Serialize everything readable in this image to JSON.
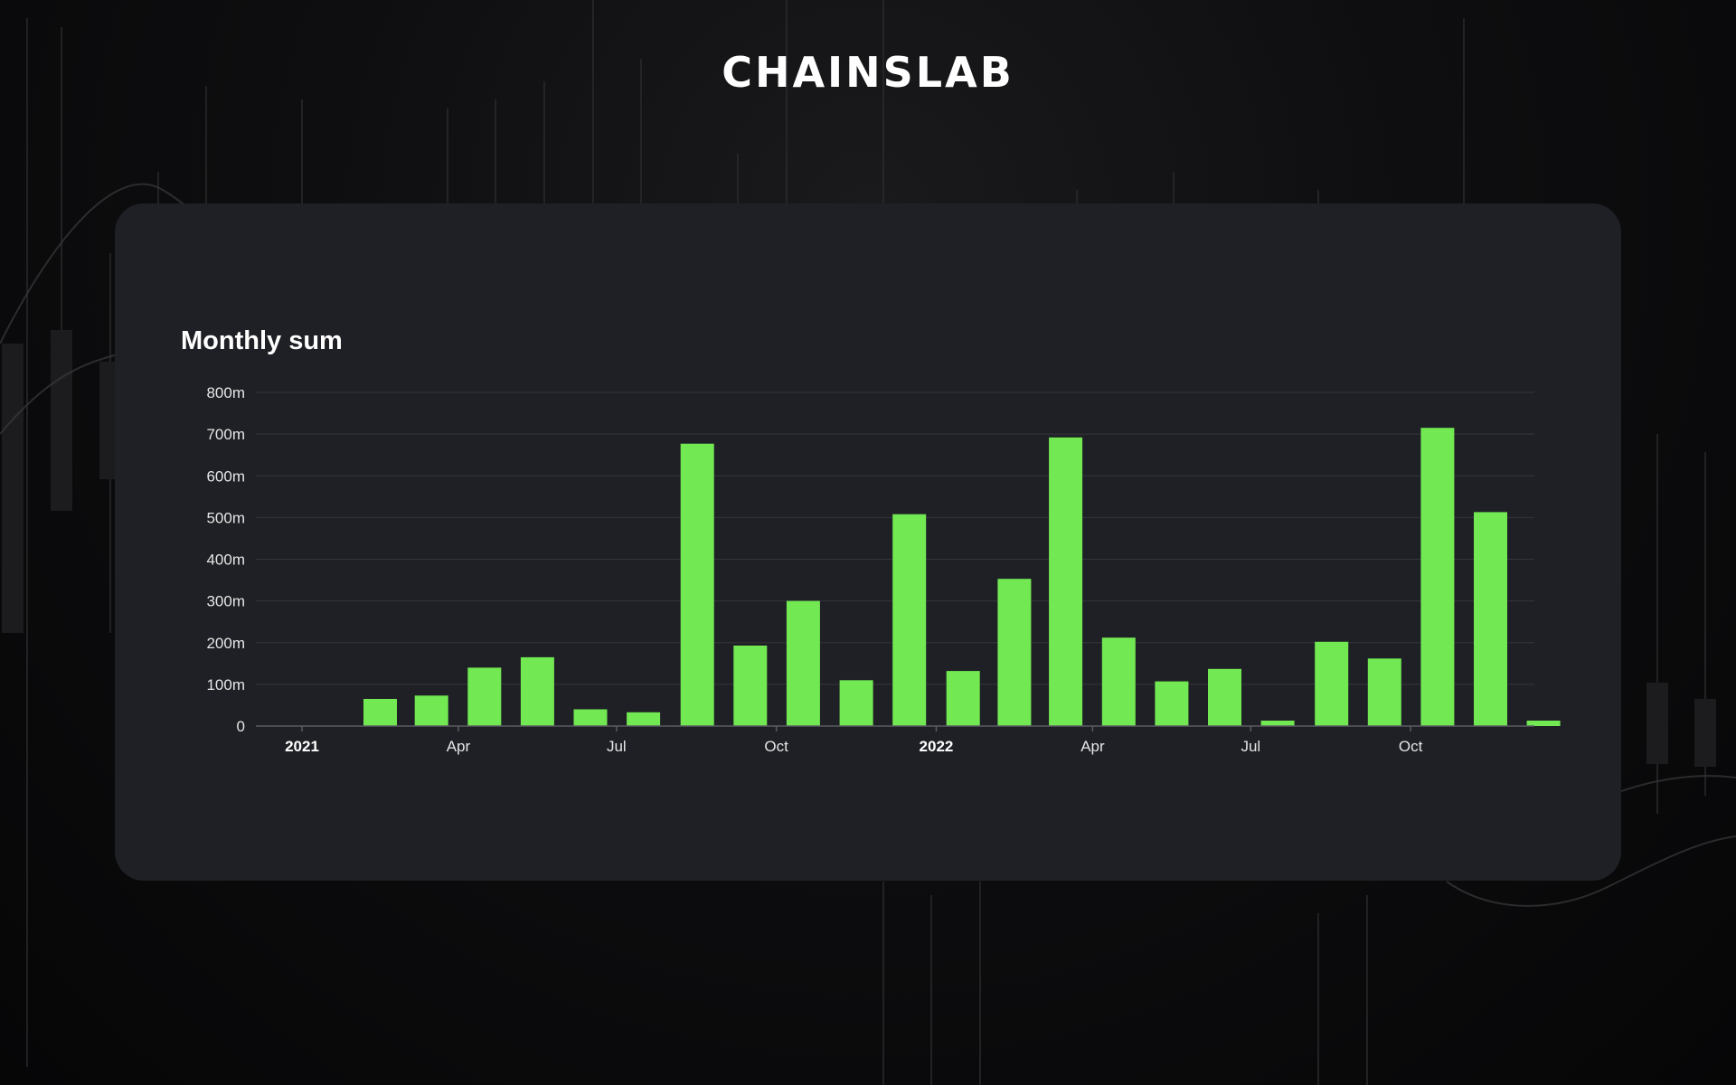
{
  "brand": {
    "logo_text": "CHAINSLAB"
  },
  "colors": {
    "bar": "#72e852",
    "card": "#1f2025",
    "background": "#0b0b0c"
  },
  "chart_data": {
    "type": "bar",
    "title": "Monthly sum",
    "xlabel": "",
    "ylabel": "",
    "ylim": [
      0,
      800000000
    ],
    "yticks": [
      {
        "value": 0,
        "label": "0"
      },
      {
        "value": 100000000,
        "label": "100m"
      },
      {
        "value": 200000000,
        "label": "200m"
      },
      {
        "value": 300000000,
        "label": "300m"
      },
      {
        "value": 400000000,
        "label": "400m"
      },
      {
        "value": 500000000,
        "label": "500m"
      },
      {
        "value": 600000000,
        "label": "600m"
      },
      {
        "value": 700000000,
        "label": "700m"
      },
      {
        "value": 800000000,
        "label": "800m"
      }
    ],
    "grid": true,
    "legend": "none",
    "x_axis": {
      "type": "date",
      "range": [
        "2021-01-01",
        "2022-12-31"
      ],
      "ticks": [
        {
          "date": "2021-01-01",
          "label": "2021",
          "bold": true
        },
        {
          "date": "2021-04-01",
          "label": "Apr",
          "bold": false
        },
        {
          "date": "2021-07-01",
          "label": "Jul",
          "bold": false
        },
        {
          "date": "2021-10-01",
          "label": "Oct",
          "bold": false
        },
        {
          "date": "2022-01-01",
          "label": "2022",
          "bold": true
        },
        {
          "date": "2022-04-01",
          "label": "Apr",
          "bold": false
        },
        {
          "date": "2022-07-01",
          "label": "Jul",
          "bold": false
        },
        {
          "date": "2022-10-01",
          "label": "Oct",
          "bold": false
        }
      ]
    },
    "categories": [
      "2021-01",
      "2021-02",
      "2021-03",
      "2021-04",
      "2021-05",
      "2021-06",
      "2021-07",
      "2021-08",
      "2021-09",
      "2021-10",
      "2021-11",
      "2021-12",
      "2022-01",
      "2022-02",
      "2022-03",
      "2022-04",
      "2022-05",
      "2022-06",
      "2022-07",
      "2022-08",
      "2022-09",
      "2022-10",
      "2022-11",
      "2022-12"
    ],
    "values": [
      0,
      65000000,
      73000000,
      140000000,
      165000000,
      40000000,
      33000000,
      677000000,
      193000000,
      300000000,
      110000000,
      508000000,
      132000000,
      353000000,
      692000000,
      212000000,
      107000000,
      137000000,
      13000000,
      202000000,
      162000000,
      715000000,
      513000000,
      13000000
    ]
  }
}
